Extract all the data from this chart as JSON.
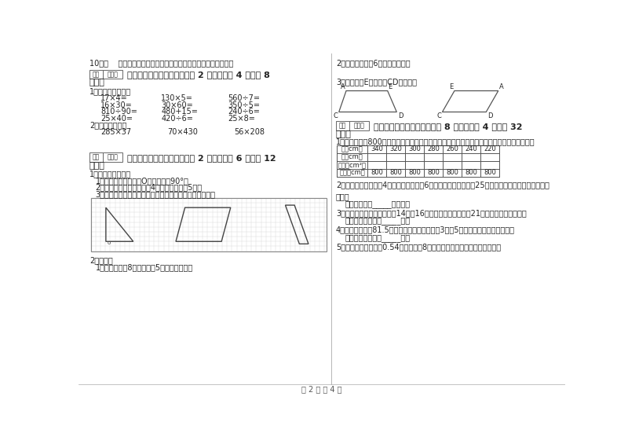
{
  "bg_color": "#ffffff",
  "text_color": "#222222",
  "line_color": "#999999",
  "border_color": "#cccccc",
  "title": "第 2 页 共 4 页",
  "left_col": {
    "q10": "10。（    ）通过一点只能画一条直线，通过两点可以画两条直线。",
    "section4_header": "四、看清题目，细心计算（共 2 小题，每题 4 分，共 8",
    "section4_fen": "分）。",
    "q1_direct": "1。直接写出得数。",
    "calc_row1": [
      "17×4=",
      "130×5=",
      "560÷7="
    ],
    "calc_row2": [
      "16×30=",
      "30×60=",
      "350÷5="
    ],
    "calc_row3": [
      "810÷90=",
      "480+15=",
      "240÷6="
    ],
    "calc_row4": [
      "25×40=",
      "420÷6=",
      "25×8="
    ],
    "q2_formula": "2。用算式计算。",
    "formula_row": [
      "285×37",
      "70×430",
      "56×208"
    ],
    "section5_header": "五、认真思考，综合能力（共 2 小题，每题 6 分，共 12",
    "section5_fen": "分）。",
    "q1_operate": "1。操作与探索题。",
    "operate_items": [
      "1）将下图三角形绕点O逆时针旋转90°。",
      "2）将平行四边形向下平移4格，再向右平移5格。",
      "3）画出右边的图形的另一个，使它成为一个轴对称图形。"
    ],
    "q2_draw": "2。作图。",
    "draw_items": [
      "1。画一个长为8厘米，宽为5厘米的长方形。"
    ]
  },
  "right_col": {
    "draw2": "2。画一个边长是6厘米的正方形。",
    "draw3": "3。分别过点E画直线段CD的垂线。",
    "section6_header": "六、应用知识，解决问题（共 8 小题，每题 4 分，共 32",
    "section6_fen": "分）。",
    "q1_table": "1。现在用一根800米的绳子，围成长方形。请你根据表中的有关数据借助计算机把表填完整。",
    "table_headers": [
      "长（cm）",
      "340",
      "320",
      "300",
      "280",
      "260",
      "240",
      "220"
    ],
    "table_row2": [
      "宽（cm）",
      "",
      "",
      "",
      "",
      "",
      "",
      ""
    ],
    "table_row3": [
      "面积（cm²）",
      "",
      "",
      "",
      "",
      "",
      "",
      ""
    ],
    "table_row4": [
      "周长（cm）",
      "800",
      "800",
      "800",
      "800",
      "800",
      "800",
      "800"
    ],
    "q2_school": "2。实验小学新建一栋4层教学楼。每层有6间教室，每个教室里放25张课桐，一共需要多少张课桐？",
    "ans2": "答：一共需要_____张课桐。",
    "q3_rope": "3。第一根和第二根绳分别长14米、16米，第三、四根结都是21米。平均每根绳多长？",
    "ans3": "答：平均每根绳长_____米。",
    "q4_chair": "4。一张桌子售价81.5元，比一把椅子的售价的3倍多5元，一把椅子售价多少元？",
    "ans4": "答：一把椅子售价_____元。",
    "q5_rect": "5。一个长方形的长是0.54米，比宽多8厘米，这个长方形的周长是多少米？"
  }
}
